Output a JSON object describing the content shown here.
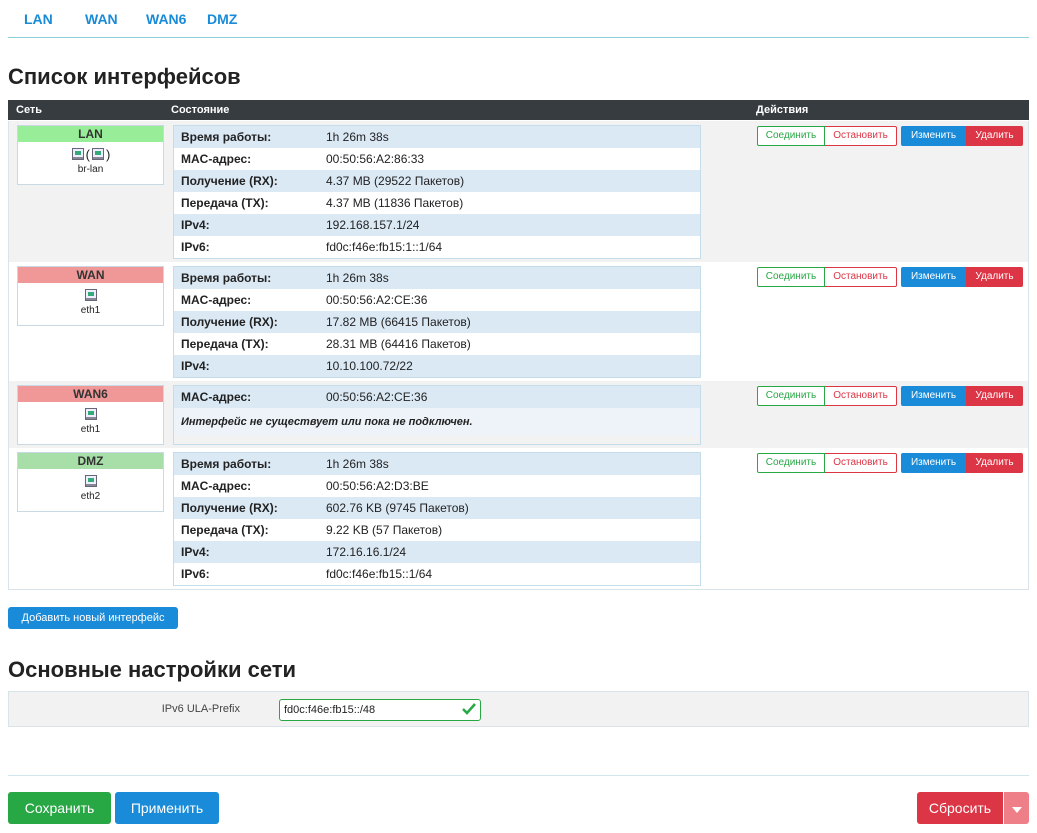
{
  "tabs": [
    "LAN",
    "WAN",
    "WAN6",
    "DMZ"
  ],
  "section_title": "Список интерфейсов",
  "table": {
    "headers": [
      "Сеть",
      "Состояние",
      "Действия"
    ],
    "rows": [
      {
        "name": "LAN",
        "color": "#98ee98",
        "bridge_open": "(",
        "bridge_close": ")",
        "device": "br-lan",
        "details": [
          [
            "Время работы:",
            "1h 26m 38s"
          ],
          [
            "MAC-адрес:",
            "00:50:56:A2:86:33"
          ],
          [
            "Получение (RX):",
            "4.37 MB (29522 Пакетов)"
          ],
          [
            "Передача (TX):",
            "4.37 MB (11836 Пакетов)"
          ],
          [
            "IPv4:",
            "192.168.157.1/24"
          ],
          [
            "IPv6:",
            "fd0c:f46e:fb15:1::1/64"
          ]
        ]
      },
      {
        "name": "WAN",
        "color": "#f09898",
        "device": "eth1",
        "details": [
          [
            "Время работы:",
            "1h 26m 38s"
          ],
          [
            "MAC-адрес:",
            "00:50:56:A2:CE:36"
          ],
          [
            "Получение (RX):",
            "17.82 MB (66415 Пакетов)"
          ],
          [
            "Передача (TX):",
            "28.31 MB (64416 Пакетов)"
          ],
          [
            "IPv4:",
            "10.10.100.72/22"
          ]
        ]
      },
      {
        "name": "WAN6",
        "color": "#f09898",
        "device": "eth1",
        "details": [
          [
            "MAC-адрес:",
            "00:50:56:A2:CE:36"
          ]
        ],
        "note": "Интерфейс не существует или пока не подключен."
      },
      {
        "name": "DMZ",
        "color": "#a8dfa8",
        "device": "eth2",
        "details": [
          [
            "Время работы:",
            "1h 26m 38s"
          ],
          [
            "MAC-адрес:",
            "00:50:56:A2:D3:BE"
          ],
          [
            "Получение (RX):",
            "602.76 KB (9745 Пакетов)"
          ],
          [
            "Передача (TX):",
            "9.22 KB (57 Пакетов)"
          ],
          [
            "IPv4:",
            "172.16.16.1/24"
          ],
          [
            "IPv6:",
            "fd0c:f46e:fb15::1/64"
          ]
        ]
      }
    ]
  },
  "actions": [
    "Соединить",
    "Остановить",
    "Изменить",
    "Удалить"
  ],
  "add_button": "Добавить новый интерфейс",
  "settings_title": "Основные настройки сети",
  "settings": {
    "label": "IPv6 ULA-Prefix",
    "value": "fd0c:f46e:fb15::/48"
  },
  "footer": {
    "save": "Сохранить",
    "apply": "Применить",
    "reset": "Сбросить"
  }
}
